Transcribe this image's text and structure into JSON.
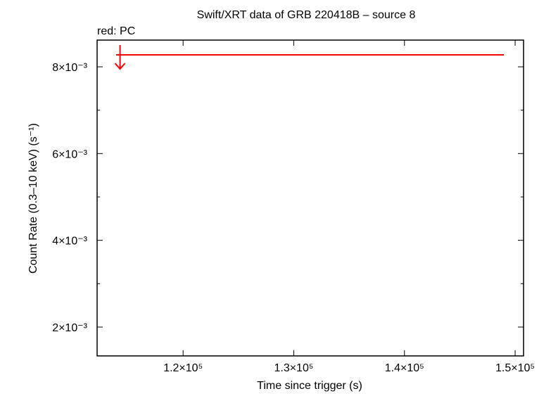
{
  "chart_data": {
    "type": "scatter",
    "title": "Swift/XRT data of GRB 220418B – source 8",
    "annotation": "red: PC",
    "x_label": "Time since trigger (s)",
    "y_label": "Count Rate (0.3–10 keV) (s⁻¹)",
    "xlim": [
      112230,
      150760
    ],
    "ylim": [
      0.001335,
      0.008616
    ],
    "xticks": [
      {
        "value": 120000,
        "label": "1.2×10⁵"
      },
      {
        "value": 130000,
        "label": "1.3×10⁵"
      },
      {
        "value": 140000,
        "label": "1.4×10⁵"
      },
      {
        "value": 150000,
        "label": "1.5×10⁵"
      }
    ],
    "yticks": [
      {
        "value": 0.002,
        "label": "2×10⁻³"
      },
      {
        "value": 0.004,
        "label": "4×10⁻³"
      },
      {
        "value": 0.006,
        "label": "6×10⁻³"
      },
      {
        "value": 0.008,
        "label": "8×10⁻³"
      }
    ],
    "yminor_ticks": [
      0.003,
      0.005,
      0.007
    ],
    "series": [
      {
        "color": "#ff0000",
        "x": [
          114300
        ],
        "xerr_minus": [
          350
        ],
        "xerr_plus": [
          34680
        ],
        "values": [
          0.008275
        ],
        "upper_limit": true
      }
    ]
  }
}
